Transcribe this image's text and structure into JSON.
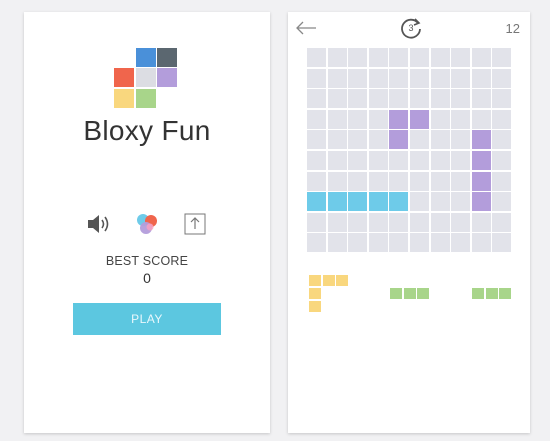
{
  "menu": {
    "title": "Bloxy Fun",
    "best_score_label": "BEST SCORE",
    "best_score_value": "0",
    "play_label": "PLAY",
    "icons": [
      "speaker-icon",
      "colors-icon",
      "share-icon"
    ]
  },
  "game": {
    "timer_value": "3",
    "score": "12",
    "board": {
      "rows": 10,
      "cols": 10
    },
    "filled_cells": [
      {
        "row": 3,
        "col": 4,
        "color": "#b39ddb"
      },
      {
        "row": 3,
        "col": 5,
        "color": "#b39ddb"
      },
      {
        "row": 4,
        "col": 4,
        "color": "#b39ddb"
      },
      {
        "row": 4,
        "col": 8,
        "color": "#b39ddb"
      },
      {
        "row": 5,
        "col": 8,
        "color": "#b39ddb"
      },
      {
        "row": 6,
        "col": 8,
        "color": "#b39ddb"
      },
      {
        "row": 7,
        "col": 8,
        "color": "#b39ddb"
      },
      {
        "row": 7,
        "col": 0,
        "color": "#6ecbe9"
      },
      {
        "row": 7,
        "col": 1,
        "color": "#6ecbe9"
      },
      {
        "row": 7,
        "col": 2,
        "color": "#6ecbe9"
      },
      {
        "row": 7,
        "col": 3,
        "color": "#6ecbe9"
      },
      {
        "row": 7,
        "col": 4,
        "color": "#6ecbe9"
      }
    ],
    "pieces": [
      {
        "name": "yellow-corner-piece",
        "color": "#f9d77e",
        "cells": [
          [
            0,
            0
          ],
          [
            0,
            1
          ],
          [
            0,
            2
          ],
          [
            1,
            0
          ],
          [
            2,
            0
          ]
        ]
      },
      {
        "name": "green-bar-piece-1",
        "color": "#a8d58a",
        "cells": [
          [
            0,
            0
          ],
          [
            0,
            1
          ],
          [
            0,
            2
          ]
        ]
      },
      {
        "name": "green-bar-piece-2",
        "color": "#a8d58a",
        "cells": [
          [
            0,
            0
          ],
          [
            0,
            1
          ],
          [
            0,
            2
          ]
        ]
      }
    ]
  },
  "colors": {
    "accent": "#5cc7e0",
    "board_empty": "#e2e3ea",
    "logo": [
      "#4a90d9",
      "#5b6770",
      "#f0654c",
      "#dcdde3",
      "#b39ddb",
      "#f9d77e",
      "#a8d58a"
    ]
  }
}
